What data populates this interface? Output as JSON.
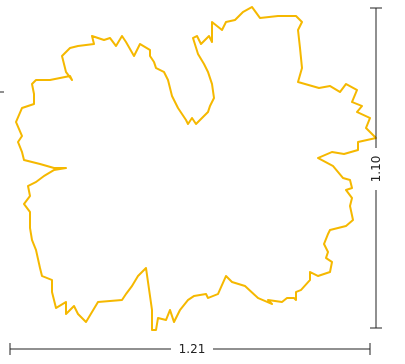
{
  "figure": {
    "width_label": "1.21",
    "height_label": "1.10",
    "outline_color": "#F5B800",
    "dimension_color": "#222222"
  }
}
